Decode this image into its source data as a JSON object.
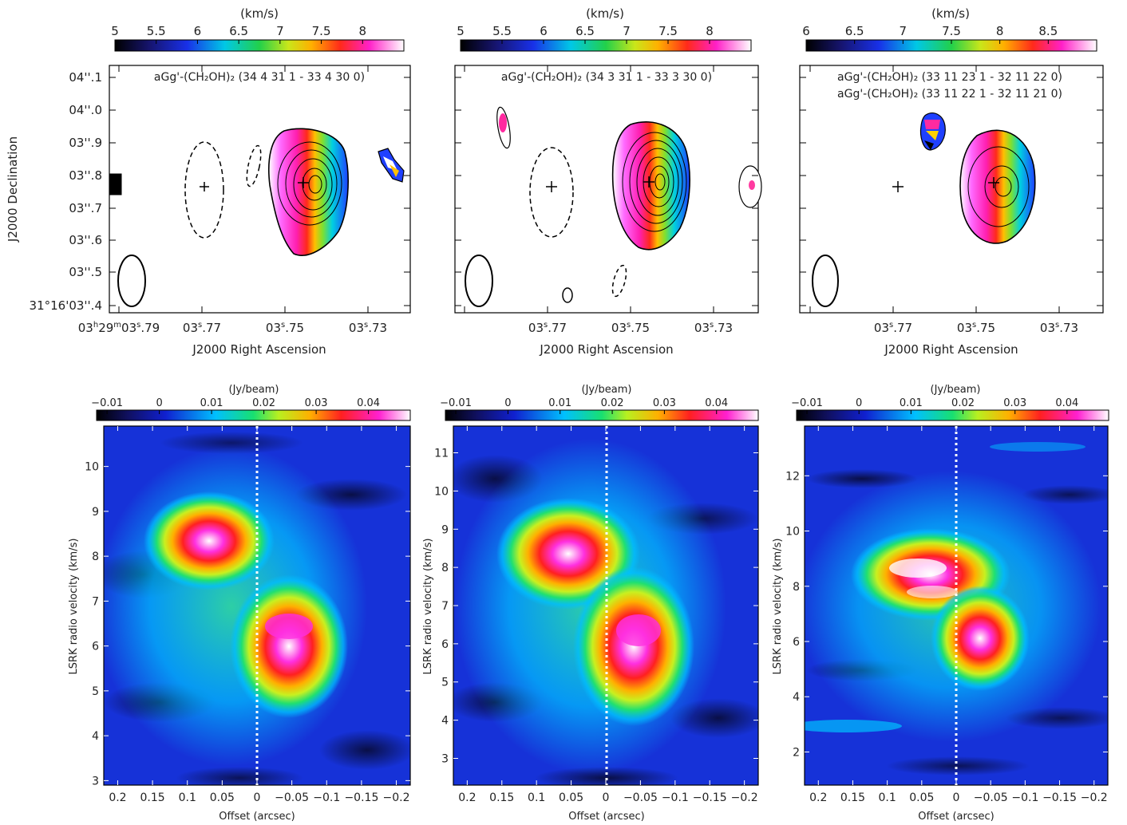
{
  "figure": {
    "colorbar_unit_top": "(km/s)",
    "colorbar_unit_bottom": "(Jy/beam)",
    "mom_xlabel": "J2000 Right Ascension",
    "mom_ylabel": "J2000 Declination",
    "pv_xlabel": "Offset (arcsec)",
    "pv_ylabel": "LSRK radio velocity  (km/s)"
  },
  "chart_data": [
    {
      "type": "heatmap",
      "panel": "top-left",
      "title": "aGg'-(CH₂OH)₂ (34 4 31 1 - 33 4 30 0)",
      "colorbar_label": "(km/s)",
      "colorbar_ticks": [
        "5",
        "5.5",
        "6",
        "6.5",
        "7",
        "7.5",
        "8"
      ],
      "colorbar_range": [
        5.0,
        8.5
      ],
      "xlabel": "J2000 Right Ascension",
      "ylabel": "J2000 Declination",
      "x_ticks": [
        "03h29m03s.79",
        "03s.77",
        "03s.75",
        "03s.73"
      ],
      "y_ticks": [
        "31°16'03''.4",
        "03''.5",
        "03''.6",
        "03''.7",
        "03''.8",
        "03''.9",
        "04''.0",
        "04''.1"
      ]
    },
    {
      "type": "heatmap",
      "panel": "top-middle",
      "title": "aGg'-(CH₂OH)₂ (34 3 31 1 - 33 3 30 0)",
      "colorbar_label": "(km/s)",
      "colorbar_ticks": [
        "5",
        "5.5",
        "6",
        "6.5",
        "7",
        "7.5",
        "8"
      ],
      "colorbar_range": [
        5.0,
        8.5
      ],
      "xlabel": "J2000 Right Ascension",
      "x_ticks": [
        "03s.77",
        "03s.75",
        "03s.73"
      ]
    },
    {
      "type": "heatmap",
      "panel": "top-right",
      "title": "aGg'-(CH₂OH)₂ (33 11 23 1 - 32 11 22 0)",
      "title2": "aGg'-(CH₂OH)₂ (33 11 22 1 - 32 11 21 0)",
      "colorbar_label": "(km/s)",
      "colorbar_ticks": [
        "6",
        "6.5",
        "7",
        "7.5",
        "8",
        "8.5"
      ],
      "colorbar_range": [
        6.0,
        9.0
      ],
      "xlabel": "J2000 Right Ascension",
      "x_ticks": [
        "03s.77",
        "03s.75",
        "03s.73"
      ]
    },
    {
      "type": "heatmap",
      "panel": "bottom-left",
      "colorbar_label": "(Jy/beam)",
      "colorbar_ticks": [
        "−0.01",
        "0",
        "0.01",
        "0.02",
        "0.03",
        "0.04"
      ],
      "colorbar_range": [
        -0.012,
        0.048
      ],
      "xlabel": "Offset (arcsec)",
      "ylabel": "LSRK radio velocity  (km/s)",
      "xlim": [
        0.22,
        -0.22
      ],
      "ylim": [
        2.9,
        10.9
      ],
      "x_ticks": [
        "0.2",
        "0.15",
        "0.1",
        "0.05",
        "0",
        "−0.05",
        "−0.1",
        "−0.15",
        "−0.2"
      ],
      "y_ticks": [
        "3",
        "4",
        "5",
        "6",
        "7",
        "8",
        "9",
        "10"
      ]
    },
    {
      "type": "heatmap",
      "panel": "bottom-middle",
      "colorbar_label": "(Jy/beam)",
      "colorbar_ticks": [
        "−0.01",
        "0",
        "0.01",
        "0.02",
        "0.03",
        "0.04"
      ],
      "colorbar_range": [
        -0.012,
        0.048
      ],
      "xlabel": "Offset (arcsec)",
      "ylabel": "LSRK radio velocity  (km/s)",
      "xlim": [
        0.22,
        -0.22
      ],
      "ylim": [
        2.3,
        11.7
      ],
      "x_ticks": [
        "0.2",
        "0.15",
        "0.1",
        "0.05",
        "0",
        "−0.05",
        "−0.1",
        "−0.15",
        "−0.2"
      ],
      "y_ticks": [
        "3",
        "4",
        "5",
        "6",
        "7",
        "8",
        "9",
        "10",
        "11"
      ]
    },
    {
      "type": "heatmap",
      "panel": "bottom-right",
      "colorbar_label": "(Jy/beam)",
      "colorbar_ticks": [
        "−0.01",
        "0",
        "0.01",
        "0.02",
        "0.03",
        "0.04"
      ],
      "colorbar_range": [
        -0.012,
        0.048
      ],
      "xlabel": "Offset (arcsec)",
      "ylabel": "LSRK radio velocity  (km/s)",
      "xlim": [
        0.22,
        -0.22
      ],
      "ylim": [
        0.8,
        13.8
      ],
      "x_ticks": [
        "0.2",
        "0.15",
        "0.1",
        "0.05",
        "0",
        "−0.05",
        "−0.1",
        "−0.15",
        "−0.2"
      ],
      "y_ticks": [
        "2",
        "4",
        "6",
        "8",
        "10",
        "12"
      ]
    }
  ]
}
